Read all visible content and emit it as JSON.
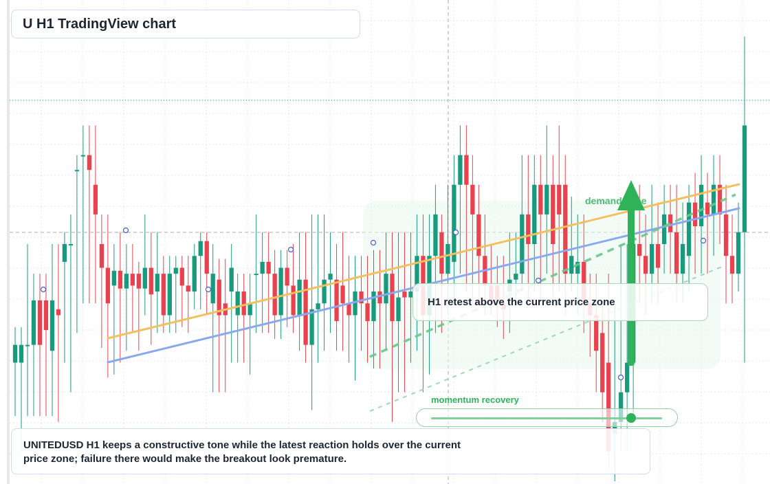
{
  "title": "U H1 TradingView chart",
  "callout": "H1 retest above the current price zone",
  "zone_label": "demand zone",
  "momentum": {
    "label": "momentum recovery",
    "level": 0.87
  },
  "note": "UNITEDUSD H1 keeps a constructive tone while the latest reaction holds over the current price zone; failure there would make the breakout look premature.",
  "colors": {
    "up": "#1a9a7c",
    "down": "#e8424f",
    "trend_orange": "#f4bf5e",
    "trend_blue": "#8aa8ee",
    "projection_green": "#2fb25a",
    "grid": "#e4e7ec"
  },
  "chart_data": {
    "type": "candlestick",
    "symbol": "UNITEDUSD",
    "timeframe": "H1",
    "y_axis": "price (unlabeled)",
    "ohlc_approx": [
      [
        80,
        86,
        62,
        92
      ],
      [
        80,
        86,
        50,
        92
      ],
      [
        86,
        86,
        62,
        120
      ],
      [
        86,
        101,
        62,
        110
      ],
      [
        101,
        86,
        62,
        110
      ],
      [
        101,
        91,
        62,
        110
      ],
      [
        84,
        101,
        62,
        120
      ],
      [
        98,
        96,
        60,
        120
      ],
      [
        114,
        120,
        80,
        124
      ],
      [
        120,
        120,
        70,
        130
      ],
      [
        145,
        145,
        90,
        150
      ],
      [
        150,
        150,
        100,
        160
      ],
      [
        150,
        145,
        100,
        160
      ],
      [
        140,
        130,
        100,
        160
      ],
      [
        120,
        112,
        85,
        130
      ],
      [
        112,
        100,
        75,
        130
      ],
      [
        106,
        111,
        76,
        120
      ],
      [
        111,
        105,
        80,
        124
      ],
      [
        105,
        110,
        84,
        120
      ],
      [
        110,
        106,
        90,
        120
      ],
      [
        110,
        105,
        84,
        114
      ],
      [
        105,
        112,
        96,
        130
      ],
      [
        112,
        103,
        86,
        124
      ],
      [
        104,
        110,
        90,
        124
      ],
      [
        110,
        96,
        90,
        116
      ],
      [
        96,
        110,
        90,
        116
      ],
      [
        110,
        112,
        90,
        116
      ],
      [
        112,
        106,
        92,
        116
      ],
      [
        106,
        104,
        90,
        116
      ],
      [
        104,
        116,
        98,
        120
      ],
      [
        116,
        121,
        98,
        124
      ],
      [
        121,
        110,
        96,
        124
      ],
      [
        100,
        110,
        70,
        120
      ],
      [
        108,
        96,
        70,
        115
      ],
      [
        100,
        96,
        70,
        115
      ],
      [
        104,
        112,
        80,
        120
      ],
      [
        96,
        104,
        80,
        110
      ],
      [
        104,
        96,
        80,
        110
      ],
      [
        96,
        100,
        76,
        110
      ],
      [
        110,
        110,
        90,
        130
      ],
      [
        110,
        114,
        90,
        124
      ],
      [
        114,
        110,
        90,
        124
      ],
      [
        110,
        96,
        88,
        118
      ],
      [
        96,
        112,
        88,
        118
      ],
      [
        112,
        106,
        92,
        118
      ],
      [
        106,
        96,
        90,
        120
      ],
      [
        96,
        108,
        84,
        124
      ],
      [
        108,
        86,
        80,
        124
      ],
      [
        86,
        98,
        64,
        130
      ],
      [
        98,
        100,
        80,
        130
      ],
      [
        100,
        108,
        84,
        130
      ],
      [
        108,
        110,
        90,
        124
      ],
      [
        108,
        94,
        84,
        120
      ],
      [
        106,
        100,
        84,
        124
      ],
      [
        100,
        96,
        80,
        116
      ],
      [
        96,
        104,
        74,
        116
      ],
      [
        104,
        100,
        84,
        116
      ],
      [
        100,
        94,
        80,
        116
      ],
      [
        94,
        104,
        78,
        118
      ],
      [
        104,
        100,
        78,
        118
      ],
      [
        100,
        110,
        84,
        124
      ],
      [
        110,
        94,
        60,
        124
      ],
      [
        94,
        102,
        70,
        124
      ],
      [
        104,
        102,
        70,
        124
      ],
      [
        102,
        104,
        80,
        124
      ],
      [
        104,
        116,
        84,
        130
      ],
      [
        116,
        96,
        70,
        130
      ],
      [
        96,
        116,
        76,
        130
      ],
      [
        116,
        130,
        90,
        140
      ],
      [
        124,
        110,
        90,
        130
      ],
      [
        110,
        120,
        96,
        140
      ],
      [
        114,
        140,
        100,
        150
      ],
      [
        140,
        150,
        110,
        160
      ],
      [
        150,
        140,
        104,
        160
      ],
      [
        140,
        130,
        100,
        150
      ],
      [
        130,
        116,
        100,
        140
      ],
      [
        116,
        106,
        96,
        130
      ],
      [
        106,
        100,
        96,
        120
      ],
      [
        106,
        100,
        92,
        116
      ],
      [
        100,
        98,
        88,
        116
      ],
      [
        104,
        108,
        90,
        124
      ],
      [
        108,
        110,
        100,
        124
      ],
      [
        110,
        130,
        104,
        150
      ],
      [
        130,
        120,
        100,
        150
      ],
      [
        120,
        140,
        104,
        150
      ],
      [
        140,
        130,
        100,
        150
      ],
      [
        130,
        140,
        110,
        160
      ],
      [
        140,
        120,
        100,
        150
      ],
      [
        140,
        130,
        104,
        160
      ],
      [
        140,
        110,
        96,
        150
      ],
      [
        110,
        116,
        104,
        136
      ],
      [
        110,
        114,
        96,
        130
      ],
      [
        114,
        100,
        90,
        130
      ],
      [
        100,
        96,
        82,
        110
      ],
      [
        96,
        84,
        70,
        110
      ],
      [
        90,
        70,
        60,
        100
      ],
      [
        80,
        50,
        44,
        110
      ],
      [
        56,
        60,
        40,
        100
      ],
      [
        60,
        70,
        50,
        120
      ],
      [
        70,
        80,
        50,
        120
      ],
      [
        80,
        120,
        60,
        140
      ],
      [
        120,
        116,
        100,
        140
      ],
      [
        116,
        110,
        96,
        130
      ],
      [
        110,
        120,
        100,
        140
      ],
      [
        120,
        112,
        100,
        134
      ],
      [
        120,
        130,
        110,
        140
      ],
      [
        130,
        124,
        110,
        140
      ],
      [
        124,
        110,
        100,
        140
      ],
      [
        110,
        120,
        100,
        134
      ],
      [
        116,
        134,
        104,
        140
      ],
      [
        134,
        126,
        110,
        144
      ],
      [
        126,
        140,
        110,
        150
      ],
      [
        134,
        130,
        110,
        144
      ],
      [
        130,
        140,
        116,
        150
      ],
      [
        140,
        130,
        120,
        150
      ],
      [
        130,
        116,
        100,
        140
      ],
      [
        116,
        110,
        100,
        130
      ],
      [
        110,
        124,
        104,
        134
      ],
      [
        124,
        160,
        80,
        190
      ]
    ]
  }
}
